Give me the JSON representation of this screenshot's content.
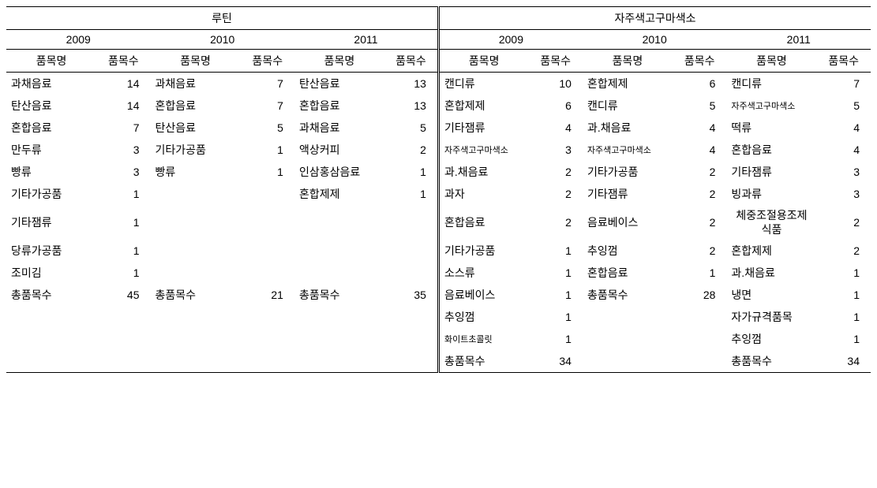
{
  "left": {
    "title": "루틴",
    "years": [
      "2009",
      "2010",
      "2011"
    ],
    "colhdr_name": "품목명",
    "colhdr_cnt": "품목수",
    "rows": [
      [
        {
          "n": "과채음료",
          "c": 14
        },
        {
          "n": "과채음료",
          "c": 7
        },
        {
          "n": "탄산음료",
          "c": 13
        }
      ],
      [
        {
          "n": "탄산음료",
          "c": 14
        },
        {
          "n": "혼합음료",
          "c": 7
        },
        {
          "n": "혼합음료",
          "c": 13
        }
      ],
      [
        {
          "n": "혼합음료",
          "c": 7
        },
        {
          "n": "탄산음료",
          "c": 5
        },
        {
          "n": "과채음료",
          "c": 5
        }
      ],
      [
        {
          "n": "만두류",
          "c": 3
        },
        {
          "n": "기타가공품",
          "c": 1
        },
        {
          "n": "액상커피",
          "c": 2
        }
      ],
      [
        {
          "n": "빵류",
          "c": 3
        },
        {
          "n": "빵류",
          "c": 1
        },
        {
          "n": "인삼홍삼음료",
          "c": 1
        }
      ],
      [
        {
          "n": "기타가공품",
          "c": 1
        },
        null,
        {
          "n": "혼합제제",
          "c": 1
        }
      ],
      [
        {
          "n": "기타잼류",
          "c": 1
        },
        null,
        null
      ],
      [
        {
          "n": "당류가공품",
          "c": 1
        },
        null,
        null
      ],
      [
        {
          "n": "조미김",
          "c": 1
        },
        null,
        null
      ],
      [
        {
          "n": "총품목수",
          "c": 45
        },
        {
          "n": "총품목수",
          "c": 21
        },
        {
          "n": "총품목수",
          "c": 35
        }
      ],
      [
        null,
        null,
        null
      ],
      [
        null,
        null,
        null
      ],
      [
        null,
        null,
        null
      ]
    ]
  },
  "right": {
    "title": "자주색고구마색소",
    "years": [
      "2009",
      "2010",
      "2011"
    ],
    "colhdr_name": "품목명",
    "colhdr_cnt": "품목수",
    "rows": [
      [
        {
          "n": "캔디류",
          "c": 10
        },
        {
          "n": "혼합제제",
          "c": 6
        },
        {
          "n": "캔디류",
          "c": 7
        }
      ],
      [
        {
          "n": "혼합제제",
          "c": 6
        },
        {
          "n": "캔디류",
          "c": 5
        },
        {
          "n": "자주색고구마색소",
          "c": 5,
          "small": true
        }
      ],
      [
        {
          "n": "기타잼류",
          "c": 4
        },
        {
          "n": "과.채음료",
          "c": 4
        },
        {
          "n": "떡류",
          "c": 4
        }
      ],
      [
        {
          "n": "자주색고구마색소",
          "c": 3,
          "small": true
        },
        {
          "n": "자주색고구마색소",
          "c": 4,
          "small": true
        },
        {
          "n": "혼합음료",
          "c": 4
        }
      ],
      [
        {
          "n": "과.채음료",
          "c": 2
        },
        {
          "n": "기타가공품",
          "c": 2
        },
        {
          "n": "기타잼류",
          "c": 3
        }
      ],
      [
        {
          "n": "과자",
          "c": 2
        },
        {
          "n": "기타잼류",
          "c": 2
        },
        {
          "n": "빙과류",
          "c": 3
        }
      ],
      [
        {
          "n": "혼합음료",
          "c": 2
        },
        {
          "n": "음료베이스",
          "c": 2
        },
        {
          "n": "체중조절용조제식품",
          "c": 2,
          "wrap": true
        }
      ],
      [
        {
          "n": "기타가공품",
          "c": 1
        },
        {
          "n": "추잉껌",
          "c": 2
        },
        {
          "n": "혼합제제",
          "c": 2
        }
      ],
      [
        {
          "n": "소스류",
          "c": 1
        },
        {
          "n": "혼합음료",
          "c": 1
        },
        {
          "n": "과.채음료",
          "c": 1
        }
      ],
      [
        {
          "n": "음료베이스",
          "c": 1
        },
        {
          "n": "총품목수",
          "c": 28
        },
        {
          "n": "냉면",
          "c": 1
        }
      ],
      [
        {
          "n": "추잉껌",
          "c": 1
        },
        null,
        {
          "n": "자가규격품목",
          "c": 1
        }
      ],
      [
        {
          "n": "화이트초콜릿",
          "c": 1,
          "small": true
        },
        null,
        {
          "n": "추잉껌",
          "c": 1
        }
      ],
      [
        {
          "n": "총품목수",
          "c": 34
        },
        null,
        {
          "n": "총품목수",
          "c": 34
        }
      ]
    ]
  }
}
